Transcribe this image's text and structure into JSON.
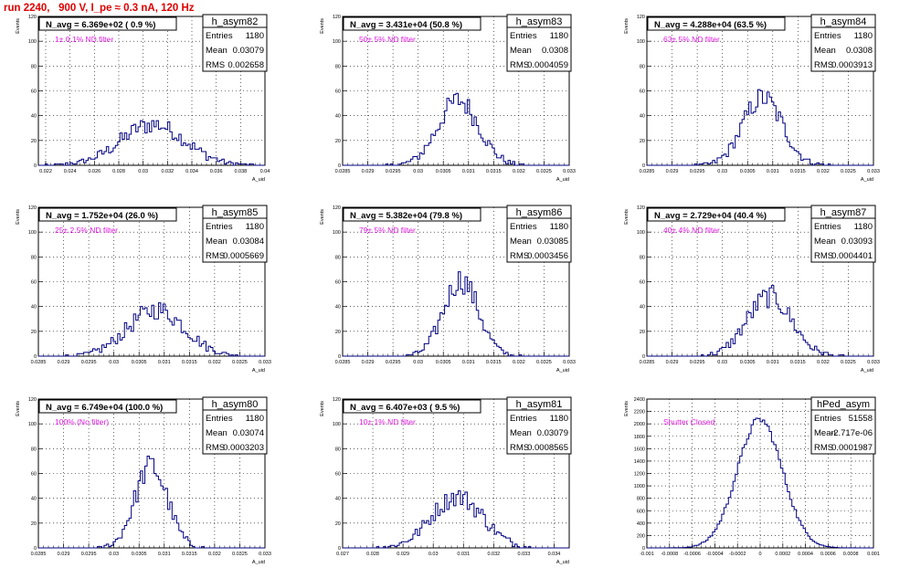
{
  "page": {
    "title": "run 2240,   900 V, I_pe ≈ 0.3 nA, 120 Hz"
  },
  "chart_data": [
    {
      "type": "bar",
      "name": "h_asym82",
      "nav_label": "N_avg = 6.369e+02 ( 0.9 %)",
      "filter_label": "1± 0.1% ND filter",
      "stats": {
        "entries": "1180",
        "mean": "0.03079",
        "rms": "0.002658"
      },
      "xlabel": "A_uid",
      "ylabel": "Events",
      "xlim": [
        0.0214,
        0.04
      ],
      "ylim": [
        0,
        120
      ],
      "xticks": [
        "0.022",
        "0.024",
        "0.026",
        "0.028",
        "0.03",
        "0.032",
        "0.034",
        "0.036",
        "0.038",
        "0.04"
      ],
      "xtick_values": [
        0.022,
        0.024,
        0.026,
        0.028,
        0.03,
        0.032,
        0.034,
        0.036,
        0.038,
        0.04
      ],
      "yticks": [
        "0",
        "20",
        "40",
        "60",
        "80",
        "100",
        "120"
      ],
      "ytick_values": [
        0,
        20,
        40,
        60,
        80,
        100,
        120
      ],
      "mu": 0.03079,
      "sigma": 0.002658,
      "entries": 1180,
      "nbins": 100
    },
    {
      "type": "bar",
      "name": "h_asym83",
      "nav_label": "N_avg = 3.431e+04 (50.8 %)",
      "filter_label": "50± 5% ND filter",
      "stats": {
        "entries": "1180",
        "mean": "0.0308",
        "rms": "0.0004059"
      },
      "xlabel": "A_uid",
      "ylabel": "Events",
      "xlim": [
        0.0285,
        0.033
      ],
      "ylim": [
        0,
        120
      ],
      "xticks": [
        "0.0285",
        "0.029",
        "0.0295",
        "0.03",
        "0.0305",
        "0.031",
        "0.0315",
        "0.032",
        "0.0325",
        "0.033"
      ],
      "xtick_values": [
        0.0285,
        0.029,
        0.0295,
        0.03,
        0.0305,
        0.031,
        0.0315,
        0.032,
        0.0325,
        0.033
      ],
      "yticks": [
        "0",
        "20",
        "40",
        "60",
        "80",
        "100",
        "120"
      ],
      "ytick_values": [
        0,
        20,
        40,
        60,
        80,
        100,
        120
      ],
      "mu": 0.0308,
      "sigma": 0.0004059,
      "entries": 1180,
      "nbins": 100
    },
    {
      "type": "bar",
      "name": "h_asym84",
      "nav_label": "N_avg = 4.288e+04 (63.5 %)",
      "filter_label": "63± 5% ND filter",
      "stats": {
        "entries": "1180",
        "mean": "0.0308",
        "rms": "0.0003913"
      },
      "xlabel": "A_uid",
      "ylabel": "Events",
      "xlim": [
        0.0285,
        0.033
      ],
      "ylim": [
        0,
        120
      ],
      "xticks": [
        "0.0285",
        "0.029",
        "0.0295",
        "0.03",
        "0.0305",
        "0.031",
        "0.0315",
        "0.032",
        "0.0325",
        "0.033"
      ],
      "xtick_values": [
        0.0285,
        0.029,
        0.0295,
        0.03,
        0.0305,
        0.031,
        0.0315,
        0.032,
        0.0325,
        0.033
      ],
      "yticks": [
        "0",
        "20",
        "40",
        "60",
        "80",
        "100",
        "120"
      ],
      "ytick_values": [
        0,
        20,
        40,
        60,
        80,
        100,
        120
      ],
      "mu": 0.0308,
      "sigma": 0.0003913,
      "entries": 1180,
      "nbins": 100
    },
    {
      "type": "bar",
      "name": "h_asym85",
      "nav_label": "N_avg = 1.752e+04 (26.0 %)",
      "filter_label": "25± 2.5% ND filter",
      "stats": {
        "entries": "1180",
        "mean": "0.03084",
        "rms": "0.0005669"
      },
      "xlabel": "A_uid",
      "ylabel": "Events",
      "xlim": [
        0.0285,
        0.033
      ],
      "ylim": [
        0,
        120
      ],
      "xticks": [
        "0.0285",
        "0.029",
        "0.0295",
        "0.03",
        "0.0305",
        "0.031",
        "0.0315",
        "0.032",
        "0.0325",
        "0.033"
      ],
      "xtick_values": [
        0.0285,
        0.029,
        0.0295,
        0.03,
        0.0305,
        0.031,
        0.0315,
        0.032,
        0.0325,
        0.033
      ],
      "yticks": [
        "0",
        "20",
        "40",
        "60",
        "80",
        "100",
        "120"
      ],
      "ytick_values": [
        0,
        20,
        40,
        60,
        80,
        100,
        120
      ],
      "mu": 0.03084,
      "sigma": 0.0005669,
      "entries": 1180,
      "nbins": 100
    },
    {
      "type": "bar",
      "name": "h_asym86",
      "nav_label": "N_avg = 5.382e+04 (79.8 %)",
      "filter_label": "79± 5% ND filter",
      "stats": {
        "entries": "1180",
        "mean": "0.03085",
        "rms": "0.0003456"
      },
      "xlabel": "A_uid",
      "ylabel": "Events",
      "xlim": [
        0.0285,
        0.033
      ],
      "ylim": [
        0,
        120
      ],
      "xticks": [
        "0.0285",
        "0.029",
        "0.0295",
        "0.03",
        "0.0305",
        "0.031",
        "0.0315",
        "0.032",
        "0.0325",
        "0.033"
      ],
      "xtick_values": [
        0.0285,
        0.029,
        0.0295,
        0.03,
        0.0305,
        0.031,
        0.0315,
        0.032,
        0.0325,
        0.033
      ],
      "yticks": [
        "0",
        "20",
        "40",
        "60",
        "80",
        "100",
        "120"
      ],
      "ytick_values": [
        0,
        20,
        40,
        60,
        80,
        100,
        120
      ],
      "mu": 0.03085,
      "sigma": 0.0003456,
      "entries": 1180,
      "nbins": 100
    },
    {
      "type": "bar",
      "name": "h_asym87",
      "nav_label": "N_avg = 2.729e+04 (40.4 %)",
      "filter_label": "40± 4% ND filter",
      "stats": {
        "entries": "1180",
        "mean": "0.03093",
        "rms": "0.0004401"
      },
      "xlabel": "A_uid",
      "ylabel": "Events",
      "xlim": [
        0.0285,
        0.033
      ],
      "ylim": [
        0,
        120
      ],
      "xticks": [
        "0.0285",
        "0.029",
        "0.0295",
        "0.03",
        "0.0305",
        "0.031",
        "0.0315",
        "0.032",
        "0.0325",
        "0.033"
      ],
      "xtick_values": [
        0.0285,
        0.029,
        0.0295,
        0.03,
        0.0305,
        0.031,
        0.0315,
        0.032,
        0.0325,
        0.033
      ],
      "yticks": [
        "0",
        "20",
        "40",
        "60",
        "80",
        "100",
        "120"
      ],
      "ytick_values": [
        0,
        20,
        40,
        60,
        80,
        100,
        120
      ],
      "mu": 0.03093,
      "sigma": 0.0004401,
      "entries": 1180,
      "nbins": 100
    },
    {
      "type": "bar",
      "name": "h_asym80",
      "nav_label": "N_avg = 6.749e+04 (100.0 %)",
      "filter_label": "100% (No filter)",
      "stats": {
        "entries": "1180",
        "mean": "0.03074",
        "rms": "0.0003203"
      },
      "xlabel": "A_uid",
      "ylabel": "Events",
      "xlim": [
        0.0285,
        0.033
      ],
      "ylim": [
        0,
        120
      ],
      "xticks": [
        "0.0285",
        "0.029",
        "0.0295",
        "0.03",
        "0.0305",
        "0.031",
        "0.0315",
        "0.032",
        "0.0325",
        "0.033"
      ],
      "xtick_values": [
        0.0285,
        0.029,
        0.0295,
        0.03,
        0.0305,
        0.031,
        0.0315,
        0.032,
        0.0325,
        0.033
      ],
      "yticks": [
        "0",
        "20",
        "40",
        "60",
        "80",
        "100",
        "120"
      ],
      "ytick_values": [
        0,
        20,
        40,
        60,
        80,
        100,
        120
      ],
      "mu": 0.03074,
      "sigma": 0.0003203,
      "entries": 1180,
      "nbins": 100
    },
    {
      "type": "bar",
      "name": "h_asym81",
      "nav_label": "N_avg = 6.407e+03 ( 9.5 %)",
      "filter_label": "10± 1% ND filter",
      "stats": {
        "entries": "1180",
        "mean": "0.03079",
        "rms": "0.0008565"
      },
      "xlabel": "A_uid",
      "ylabel": "Events",
      "xlim": [
        0.027,
        0.0345
      ],
      "ylim": [
        0,
        120
      ],
      "xticks": [
        "0.027",
        "0.028",
        "0.029",
        "0.03",
        "0.031",
        "0.032",
        "0.033",
        "0.034"
      ],
      "xtick_values": [
        0.027,
        0.028,
        0.029,
        0.03,
        0.031,
        0.032,
        0.033,
        0.034
      ],
      "yticks": [
        "0",
        "20",
        "40",
        "60",
        "80",
        "100",
        "120"
      ],
      "ytick_values": [
        0,
        20,
        40,
        60,
        80,
        100,
        120
      ],
      "mu": 0.03079,
      "sigma": 0.0008565,
      "entries": 1180,
      "nbins": 100
    },
    {
      "type": "bar",
      "name": "hPed_asym",
      "nav_label": "",
      "filter_label": "Shutter Closed",
      "stats": {
        "entries": "51558",
        "mean": "-2.717e-06",
        "rms": "0.0001987"
      },
      "xlabel": "",
      "ylabel": "Events",
      "xlim": [
        -0.001,
        0.001
      ],
      "ylim": [
        0,
        2400
      ],
      "xticks": [
        "-0.001",
        "-0.0008",
        "-0.0006",
        "-0.0004",
        "-0.0002",
        "0",
        "0.0002",
        "0.0004",
        "0.0006",
        "0.0008",
        "0.001"
      ],
      "xtick_values": [
        -0.001,
        -0.0008,
        -0.0006,
        -0.0004,
        -0.0002,
        0,
        0.0002,
        0.0004,
        0.0006,
        0.0008,
        0.001
      ],
      "yticks": [
        "0",
        "200",
        "400",
        "600",
        "800",
        "1000",
        "1200",
        "1400",
        "1600",
        "1800",
        "2000",
        "2200",
        "2400"
      ],
      "ytick_values": [
        0,
        200,
        400,
        600,
        800,
        1000,
        1200,
        1400,
        1600,
        1800,
        2000,
        2200,
        2400
      ],
      "mu": -2.717e-06,
      "sigma": 0.0001987,
      "entries": 51558,
      "nbins": 100
    }
  ],
  "colors": {
    "histogram_line": "#000080",
    "title_text": "#e00000",
    "filter_text": "#e020e0",
    "grid": "#000000"
  }
}
